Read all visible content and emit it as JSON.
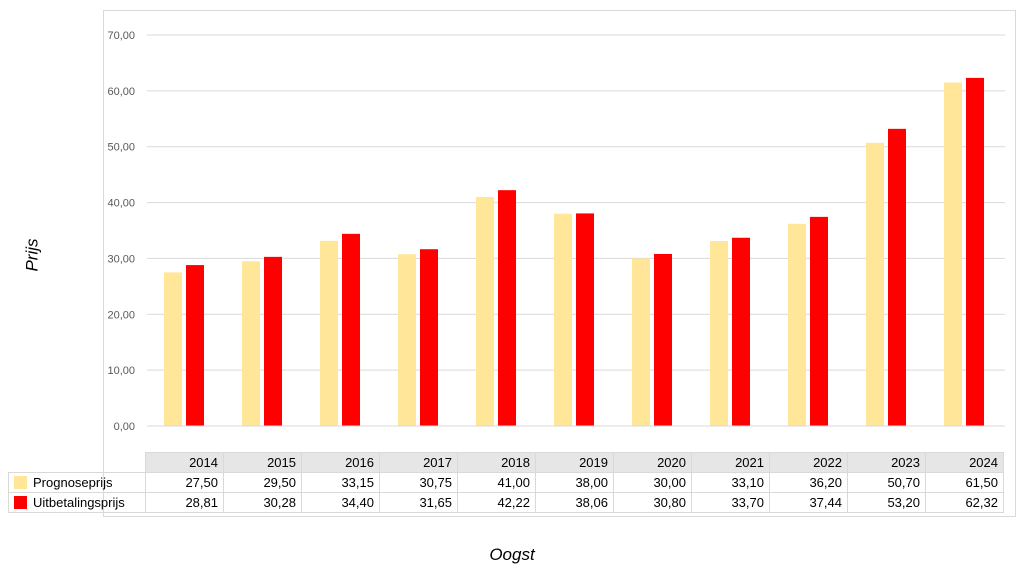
{
  "chart_data": {
    "type": "bar",
    "title": "",
    "xlabel": "Oogst",
    "ylabel": "Prijs",
    "ylim": [
      0,
      70
    ],
    "yticks": [
      "0,00",
      "10,00",
      "20,00",
      "30,00",
      "40,00",
      "50,00",
      "60,00",
      "70,00"
    ],
    "grid": true,
    "legend": "data-table",
    "categories": [
      "2014",
      "2015",
      "2016",
      "2017",
      "2018",
      "2019",
      "2020",
      "2021",
      "2022",
      "2023",
      "2024"
    ],
    "series": [
      {
        "name": "Prognoseprijs",
        "color": "#ffe699",
        "values": [
          27.5,
          29.5,
          33.15,
          30.75,
          41.0,
          38.0,
          30.0,
          33.1,
          36.2,
          50.7,
          61.5
        ],
        "labels": [
          "27,50",
          "29,50",
          "33,15",
          "30,75",
          "41,00",
          "38,00",
          "30,00",
          "33,10",
          "36,20",
          "50,70",
          "61,50"
        ]
      },
      {
        "name": "Uitbetalingsprijs",
        "color": "#ff0000",
        "values": [
          28.81,
          30.28,
          34.4,
          31.65,
          42.22,
          38.06,
          30.8,
          33.7,
          37.44,
          53.2,
          62.32
        ],
        "labels": [
          "28,81",
          "30,28",
          "34,40",
          "31,65",
          "42,22",
          "38,06",
          "30,80",
          "33,70",
          "37,44",
          "53,20",
          "62,32"
        ]
      }
    ]
  }
}
